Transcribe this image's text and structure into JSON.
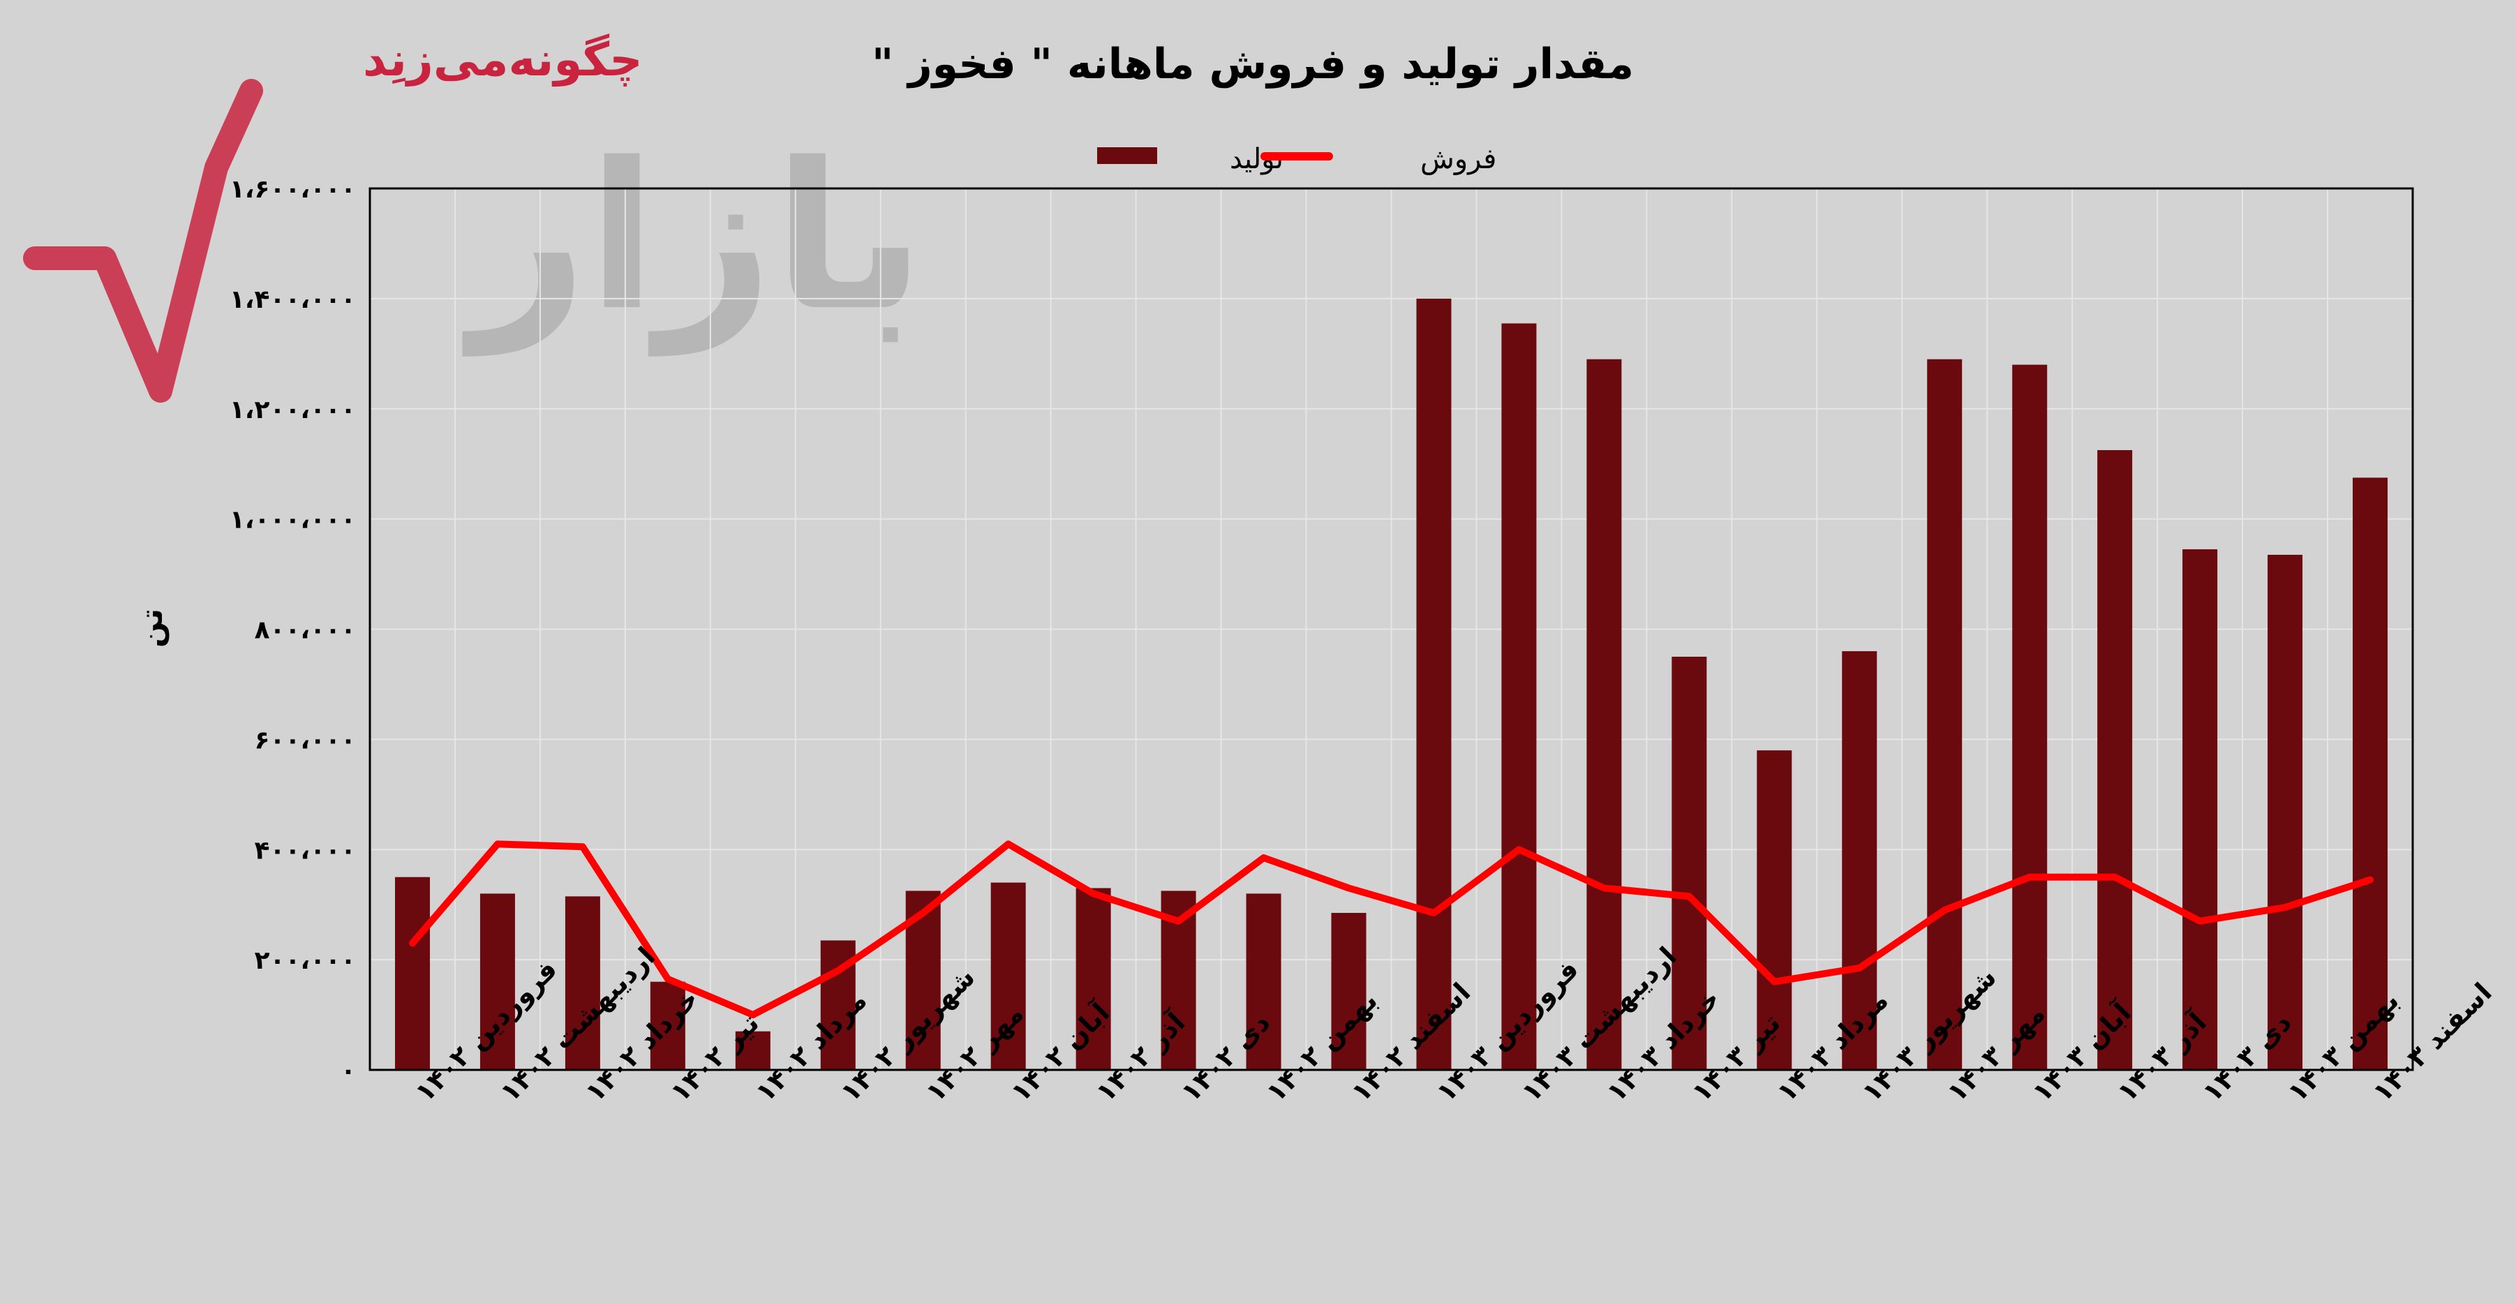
{
  "watermark": {
    "top_text": "چگونه‌می‌زنِد",
    "main_text": "بازار"
  },
  "chart_data": {
    "type": "bar",
    "title": "مقدار تولید و فروش ماهانه \" فخوز \"",
    "ylabel": "تن",
    "xlabel": "",
    "ylim": [
      0,
      1600000
    ],
    "yticks": [
      0,
      200000,
      400000,
      600000,
      800000,
      1000000,
      1200000,
      1400000,
      1600000
    ],
    "ytick_labels": [
      "۰",
      "۲۰۰،۰۰۰",
      "۴۰۰،۰۰۰",
      "۶۰۰،۰۰۰",
      "۸۰۰،۰۰۰",
      "۱،۰۰۰،۰۰۰",
      "۱،۲۰۰،۰۰۰",
      "۱،۴۰۰،۰۰۰",
      "۱،۶۰۰،۰۰۰"
    ],
    "grid": true,
    "legend_position": "top",
    "categories": [
      "فروردین ۱۴۰۲",
      "اردیبهشت ۱۴۰۲",
      "خرداد ۱۴۰۲",
      "تیر ۱۴۰۲",
      "مرداد ۱۴۰۲",
      "شهریور ۱۴۰۲",
      "مهر ۱۴۰۲",
      "آبان ۱۴۰۲",
      "آذر ۱۴۰۲",
      "دی ۱۴۰۲",
      "بهمن ۱۴۰۲",
      "اسفند ۱۴۰۲",
      "فروردین ۱۴۰۳",
      "اردیبهشت ۱۴۰۳",
      "خرداد ۱۴۰۳",
      "تیر ۱۴۰۳",
      "مرداد ۱۴۰۳",
      "شهریور ۱۴۰۳",
      "مهر ۱۴۰۳",
      "آبان ۱۴۰۳",
      "آذر ۱۴۰۳",
      "دی ۱۴۰۳",
      "بهمن ۱۴۰۳",
      "اسفند ۱۴۰۳"
    ],
    "series": [
      {
        "name": "تولید",
        "type": "bar",
        "color": "#6b0a0e",
        "values": [
          350000,
          320000,
          315000,
          160000,
          70000,
          235000,
          325000,
          340000,
          330000,
          325000,
          320000,
          285000,
          1400000,
          1355000,
          1290000,
          750000,
          580000,
          760000,
          1290000,
          1280000,
          1125000,
          945000,
          935000,
          1075000
        ]
      },
      {
        "name": "فروش",
        "type": "line",
        "color": "#ff0000",
        "values": [
          230000,
          410000,
          405000,
          165000,
          100000,
          180000,
          285000,
          410000,
          320000,
          270000,
          385000,
          330000,
          285000,
          400000,
          330000,
          315000,
          160000,
          185000,
          290000,
          350000,
          350000,
          270000,
          295000,
          345000
        ]
      }
    ]
  }
}
